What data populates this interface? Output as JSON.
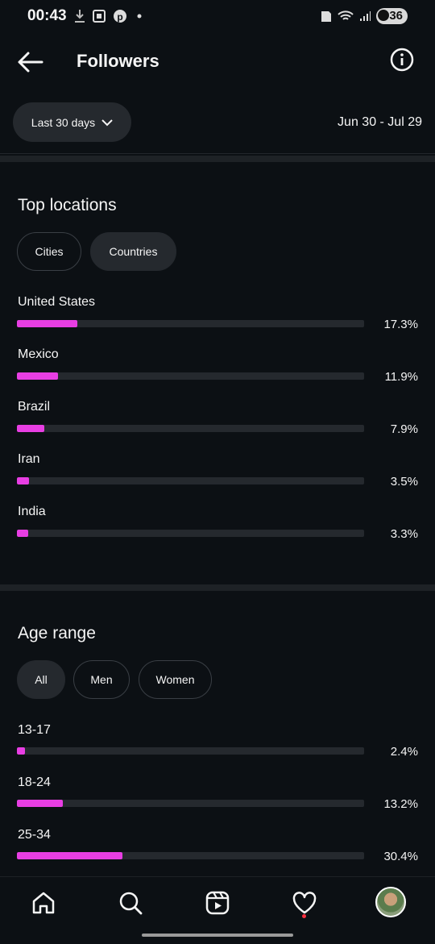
{
  "status_bar": {
    "time": "00:43",
    "battery": "36"
  },
  "header": {
    "title": "Followers"
  },
  "filter": {
    "range_label": "Last 30 days",
    "date_range": "Jun 30 - Jul 29"
  },
  "top_locations": {
    "title": "Top locations",
    "tabs": [
      {
        "label": "Cities",
        "active": false
      },
      {
        "label": "Countries",
        "active": true
      }
    ],
    "rows": [
      {
        "label": "United States",
        "value": "17.3%",
        "fill": 0.173
      },
      {
        "label": "Mexico",
        "value": "11.9%",
        "fill": 0.119
      },
      {
        "label": "Brazil",
        "value": "7.9%",
        "fill": 0.079
      },
      {
        "label": "Iran",
        "value": "3.5%",
        "fill": 0.035
      },
      {
        "label": "India",
        "value": "3.3%",
        "fill": 0.033
      }
    ]
  },
  "age_range": {
    "title": "Age range",
    "tabs": [
      {
        "label": "All",
        "active": true
      },
      {
        "label": "Men",
        "active": false
      },
      {
        "label": "Women",
        "active": false
      }
    ],
    "rows": [
      {
        "label": "13-17",
        "value": "2.4%",
        "fill": 0.024
      },
      {
        "label": "18-24",
        "value": "13.2%",
        "fill": 0.132
      },
      {
        "label": "25-34",
        "value": "30.4%",
        "fill": 0.304
      }
    ]
  },
  "nav": {
    "items": [
      "home-icon",
      "search-icon",
      "reels-icon",
      "heart-icon",
      "profile-avatar"
    ]
  },
  "colors": {
    "accent": "#e83ee3",
    "background": "#0c1014",
    "track": "#25292e"
  }
}
